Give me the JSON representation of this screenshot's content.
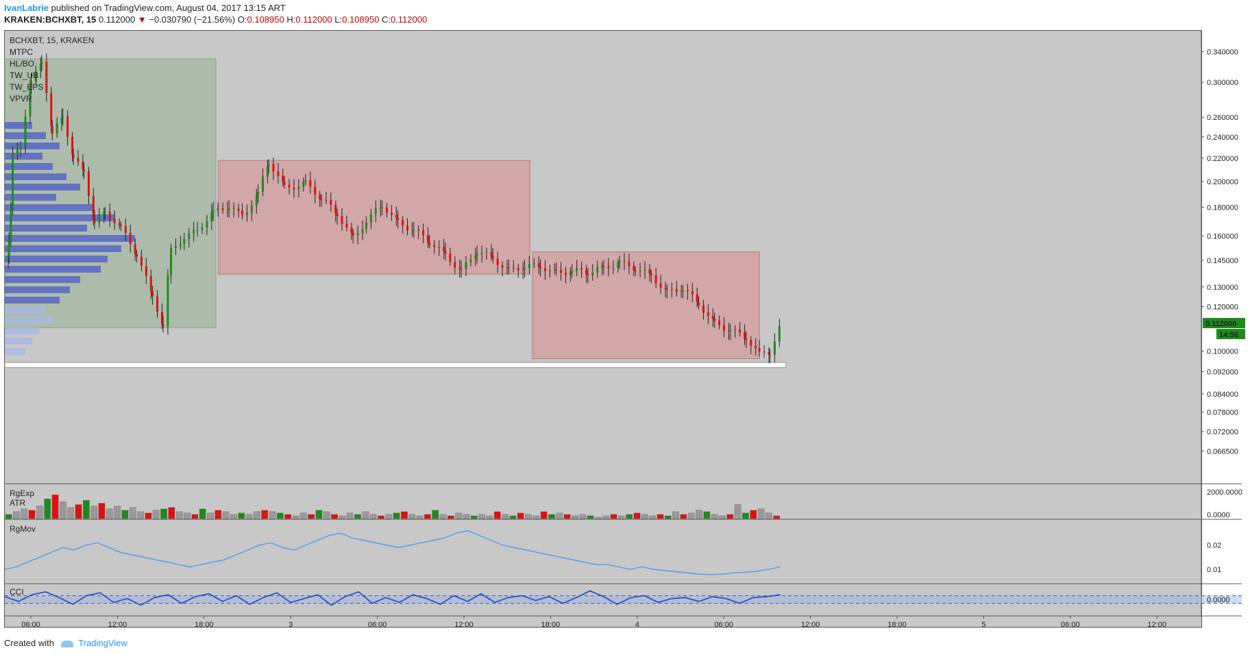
{
  "header": {
    "author": "IvanLabrie",
    "published_text": "published on TradingView.com, August 04, 2017 13:15 ART",
    "symbol": "KRAKEN:BCHXBT, 15",
    "last": "0.112000",
    "change_arrow": "▼",
    "change": "−0.030790 (−21.56%)",
    "o_label": "O:",
    "o": "0.108950",
    "h_label": "H:",
    "h": "0.112000",
    "l_label": "L:",
    "l": "0.108950",
    "c_label": "C:",
    "c": "0.112000"
  },
  "legend": [
    "BCHXBT, 15, KRAKEN",
    "MTPC",
    "HL/BO",
    "TW_UB",
    "TW_EPS",
    "VPVR"
  ],
  "footer": {
    "created_with": "Created with",
    "brand": "TradingView"
  },
  "colors": {
    "up": "#1e8a1e",
    "down": "#e01010",
    "pane_bg": "#c8c8c8",
    "box_green": "#a4b8a0",
    "box_red": "#d49c9c",
    "vpvr": "#5060c8",
    "line": "#5aa0f0"
  },
  "chart_data": {
    "type": "candlestick",
    "symbol": "BCHXBT",
    "interval": "15",
    "exchange": "KRAKEN",
    "y_scale": "log",
    "ylim": [
      0.06,
      0.35
    ],
    "y_ticks": [
      "0.340000",
      "0.300000",
      "0.260000",
      "0.240000",
      "0.220000",
      "0.200000",
      "0.180000",
      "0.160000",
      "0.145000",
      "0.130000",
      "0.120000",
      "0.100000",
      "0.092000",
      "0.084000",
      "0.078000",
      "0.072000",
      "0.066500"
    ],
    "x_ticks": [
      "06:00",
      "12:00",
      "18:00",
      "3",
      "06:00",
      "12:00",
      "18:00",
      "4",
      "06:00",
      "12:00",
      "18:00",
      "5",
      "06:00",
      "12:00"
    ],
    "last_price_label": "0.112000",
    "countdown_label": "14:56",
    "price_path": [
      [
        0.13,
        0.145
      ],
      [
        0.16,
        0.155
      ],
      [
        0.23,
        0.175
      ],
      [
        0.3,
        0.22
      ],
      [
        0.6,
        0.235
      ],
      [
        1.0,
        0.3
      ],
      [
        1.4,
        0.33
      ],
      [
        1.8,
        0.24
      ],
      [
        2.2,
        0.26
      ],
      [
        2.6,
        0.22
      ],
      [
        3.0,
        0.21
      ],
      [
        3.4,
        0.17
      ],
      [
        3.8,
        0.175
      ],
      [
        4.4,
        0.165
      ],
      [
        5.0,
        0.15
      ],
      [
        5.6,
        0.125
      ],
      [
        6.0,
        0.11
      ],
      [
        6.3,
        0.15
      ],
      [
        6.8,
        0.16
      ],
      [
        7.3,
        0.165
      ],
      [
        7.9,
        0.175
      ],
      [
        8.5,
        0.18
      ],
      [
        9.0,
        0.175
      ],
      [
        9.6,
        0.19
      ],
      [
        10.0,
        0.215
      ],
      [
        10.6,
        0.195
      ],
      [
        11.4,
        0.2
      ],
      [
        12.0,
        0.185
      ],
      [
        12.6,
        0.175
      ],
      [
        13.2,
        0.16
      ],
      [
        13.7,
        0.17
      ],
      [
        14.3,
        0.18
      ],
      [
        14.9,
        0.17
      ],
      [
        15.5,
        0.165
      ],
      [
        16.1,
        0.155
      ],
      [
        16.7,
        0.148
      ],
      [
        17.3,
        0.14
      ],
      [
        17.9,
        0.15
      ],
      [
        18.5,
        0.145
      ],
      [
        19.1,
        0.14
      ],
      [
        19.7,
        0.142
      ],
      [
        20.3,
        0.14
      ],
      [
        20.9,
        0.138
      ],
      [
        21.5,
        0.14
      ],
      [
        22.1,
        0.137
      ],
      [
        22.7,
        0.14
      ],
      [
        23.3,
        0.145
      ],
      [
        23.9,
        0.14
      ],
      [
        24.5,
        0.135
      ],
      [
        25.1,
        0.128
      ],
      [
        25.7,
        0.13
      ],
      [
        26.3,
        0.12
      ],
      [
        26.9,
        0.112
      ],
      [
        27.5,
        0.11
      ],
      [
        28.1,
        0.105
      ],
      [
        28.6,
        0.098
      ],
      [
        29.0,
        0.1
      ],
      [
        29.4,
        0.112
      ]
    ],
    "zones": [
      {
        "name": "green",
        "x": [
          0.0,
          8.0
        ],
        "y": [
          0.11,
          0.33
        ]
      },
      {
        "name": "red1",
        "x": [
          8.1,
          19.9
        ],
        "y": [
          0.137,
          0.218
        ]
      },
      {
        "name": "red2",
        "x": [
          20.0,
          28.6
        ],
        "y": [
          0.097,
          0.15
        ]
      },
      {
        "name": "white",
        "x": [
          0.0,
          29.6
        ],
        "y": [
          0.0935,
          0.0955
        ]
      }
    ],
    "volume": {
      "label": "RgExp",
      "sub_label": "ATR",
      "y_ticks": [
        "2000.0000",
        "0.0000"
      ],
      "bars": [
        300,
        500,
        700,
        600,
        900,
        1400,
        1700,
        1200,
        800,
        1000,
        1300,
        900,
        1100,
        700,
        900,
        600,
        800,
        500,
        400,
        600,
        700,
        800,
        500,
        400,
        300,
        700,
        400,
        600,
        500,
        300,
        400,
        300,
        500,
        600,
        500,
        400,
        300,
        200,
        400,
        300,
        600,
        500,
        300,
        200,
        400,
        300,
        500,
        300,
        200,
        300,
        400,
        500,
        300,
        200,
        300,
        600,
        300,
        200,
        400,
        300,
        200,
        300,
        200,
        500,
        300,
        200,
        400,
        300,
        200,
        500,
        300,
        400,
        300,
        200,
        300,
        200,
        100,
        200,
        300,
        200,
        300,
        400,
        300,
        200,
        300,
        200,
        500,
        300,
        400,
        600,
        500,
        300,
        200,
        300,
        1000,
        400,
        600,
        700,
        400,
        200
      ]
    },
    "rgmov": {
      "label": "RgMov",
      "y_ticks": [
        "0.02",
        "0.01"
      ],
      "values": [
        0.01,
        0.011,
        0.013,
        0.015,
        0.017,
        0.019,
        0.018,
        0.02,
        0.021,
        0.019,
        0.017,
        0.016,
        0.015,
        0.014,
        0.013,
        0.012,
        0.011,
        0.012,
        0.013,
        0.014,
        0.016,
        0.018,
        0.02,
        0.021,
        0.019,
        0.018,
        0.02,
        0.022,
        0.024,
        0.025,
        0.023,
        0.022,
        0.021,
        0.02,
        0.019,
        0.02,
        0.021,
        0.022,
        0.023,
        0.025,
        0.026,
        0.024,
        0.022,
        0.02,
        0.019,
        0.018,
        0.017,
        0.016,
        0.015,
        0.014,
        0.013,
        0.012,
        0.012,
        0.011,
        0.01,
        0.011,
        0.01,
        0.0095,
        0.009,
        0.0085,
        0.008,
        0.0078,
        0.008,
        0.0085,
        0.0088,
        0.0092,
        0.01,
        0.011
      ],
      "range": [
        0.006,
        0.029
      ]
    },
    "cci": {
      "label": "CCI",
      "y_ticks": [
        "0.0000"
      ],
      "values": [
        0.3,
        -0.2,
        0.5,
        0.8,
        0.2,
        -0.5,
        0.4,
        0.7,
        -0.3,
        0.1,
        -0.6,
        0.2,
        0.5,
        -0.4,
        0.3,
        0.6,
        -0.2,
        0.4,
        -0.5,
        0.2,
        0.7,
        -0.3,
        0.1,
        0.5,
        -0.6,
        0.3,
        0.8,
        -0.4,
        0.2,
        -0.3,
        0.5,
        0.1,
        -0.5,
        0.4,
        -0.2,
        0.6,
        -0.3,
        0.2,
        0.4,
        -0.1,
        0.3,
        -0.4,
        0.2,
        0.9,
        0.3,
        -0.5,
        0.2,
        0.4,
        -0.3,
        0.1,
        0.2,
        -0.2,
        0.3,
        0.1,
        -0.4,
        0.2,
        0.3,
        0.5
      ],
      "band": [
        -0.4,
        0.4
      ]
    }
  }
}
